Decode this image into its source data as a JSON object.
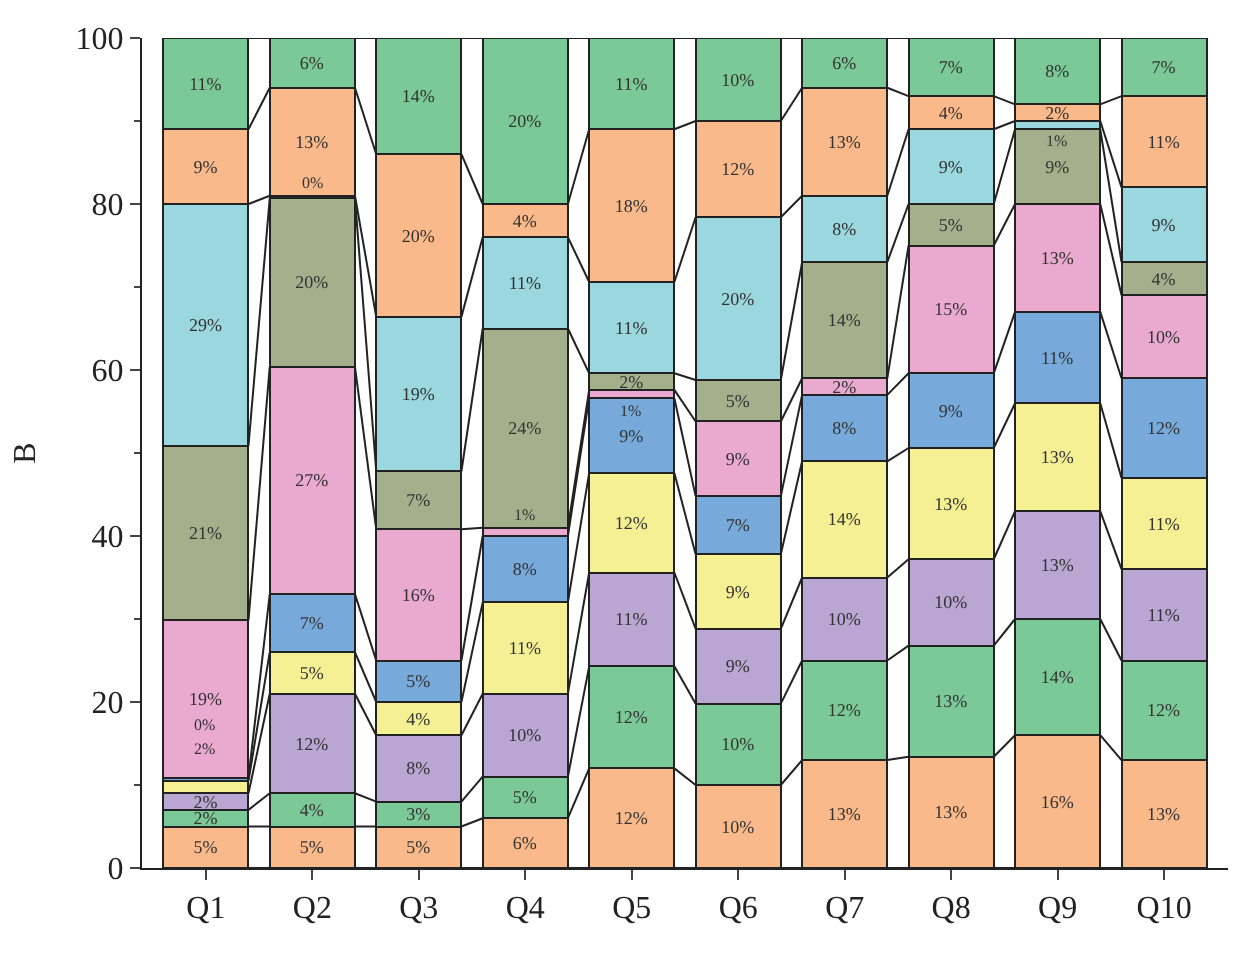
{
  "chart_data": {
    "type": "bar",
    "stacked": true,
    "ylabel": "B",
    "categories": [
      "Q1",
      "Q2",
      "Q3",
      "Q4",
      "Q5",
      "Q6",
      "Q7",
      "Q8",
      "Q9",
      "Q10"
    ],
    "ylim": [
      0,
      100
    ],
    "yticks": [
      0,
      20,
      40,
      60,
      80,
      100
    ],
    "series": [
      {
        "color": "#f9b98a",
        "values": [
          5,
          5,
          5,
          6,
          12,
          10,
          13,
          13.4,
          16,
          13
        ],
        "value_labels": [
          "5%",
          "5%",
          "5%",
          "6%",
          "12%",
          "10%",
          "13%",
          "13%",
          "16%",
          "13%"
        ]
      },
      {
        "color": "#7bc996",
        "values": [
          2,
          4,
          3,
          5,
          12.3,
          9.8,
          12,
          13.4,
          14,
          12
        ],
        "value_labels": [
          "2%",
          "4%",
          "3%",
          "5%",
          "12%",
          "10%",
          "12%",
          "13%",
          "14%",
          "12%"
        ]
      },
      {
        "color": "#b9a6d2",
        "values": [
          2,
          12,
          8,
          10,
          11.3,
          9,
          10,
          10.4,
          13,
          11
        ],
        "value_labels": [
          "2%",
          "12%",
          "8%",
          "10%",
          "11%",
          "9%",
          "10%",
          "10%",
          "13%",
          "11%"
        ]
      },
      {
        "color": "#f5f093",
        "values": [
          1.5,
          5,
          4,
          11,
          12,
          9,
          14,
          13.4,
          13,
          11
        ],
        "value_labels": [
          "2%",
          "5%",
          "4%",
          "11%",
          "12%",
          "9%",
          "14%",
          "13%",
          "13%",
          "11%"
        ]
      },
      {
        "color": "#77aadb",
        "values": [
          0.4,
          7,
          5,
          8,
          9,
          7,
          8,
          9,
          11,
          12
        ],
        "value_labels": [
          "0%",
          "7%",
          "5%",
          "8%",
          "9%",
          "7%",
          "8%",
          "9%",
          "11%",
          "12%"
        ]
      },
      {
        "color": "#eaa9cf",
        "values": [
          19,
          27.4,
          15.8,
          1,
          1,
          9,
          2,
          15.4,
          13,
          10
        ],
        "value_labels": [
          "19%",
          "27%",
          "16%",
          "1%",
          "1%",
          "9%",
          "2%",
          "15%",
          "13%",
          "10%"
        ]
      },
      {
        "color": "#a3b08b",
        "values": [
          21,
          20.3,
          7,
          24,
          2,
          5,
          14,
          5,
          9,
          4
        ],
        "value_labels": [
          "21%",
          "20%",
          "7%",
          "24%",
          "2%",
          "5%",
          "14%",
          "5%",
          "9%",
          "4%"
        ]
      },
      {
        "color": "#9bd7df",
        "values": [
          29.1,
          0.3,
          18.6,
          11,
          11,
          19.6,
          8,
          9,
          1,
          9
        ],
        "value_labels": [
          "29%",
          "0%",
          "19%",
          "11%",
          "11%",
          "20%",
          "8%",
          "9%",
          "1%",
          "9%"
        ]
      },
      {
        "color": "#f9b98a",
        "values": [
          9,
          13,
          19.6,
          4,
          18.4,
          11.6,
          13,
          4,
          2,
          11
        ],
        "value_labels": [
          "9%",
          "13%",
          "20%",
          "4%",
          "18%",
          "12%",
          "13%",
          "4%",
          "2%",
          "11%"
        ]
      },
      {
        "color": "#7bc996",
        "values": [
          11,
          6,
          14,
          20,
          11,
          10,
          6,
          7,
          8,
          7
        ],
        "value_labels": [
          "11%",
          "6%",
          "14%",
          "20%",
          "11%",
          "10%",
          "6%",
          "7%",
          "8%",
          "7%"
        ]
      }
    ]
  }
}
